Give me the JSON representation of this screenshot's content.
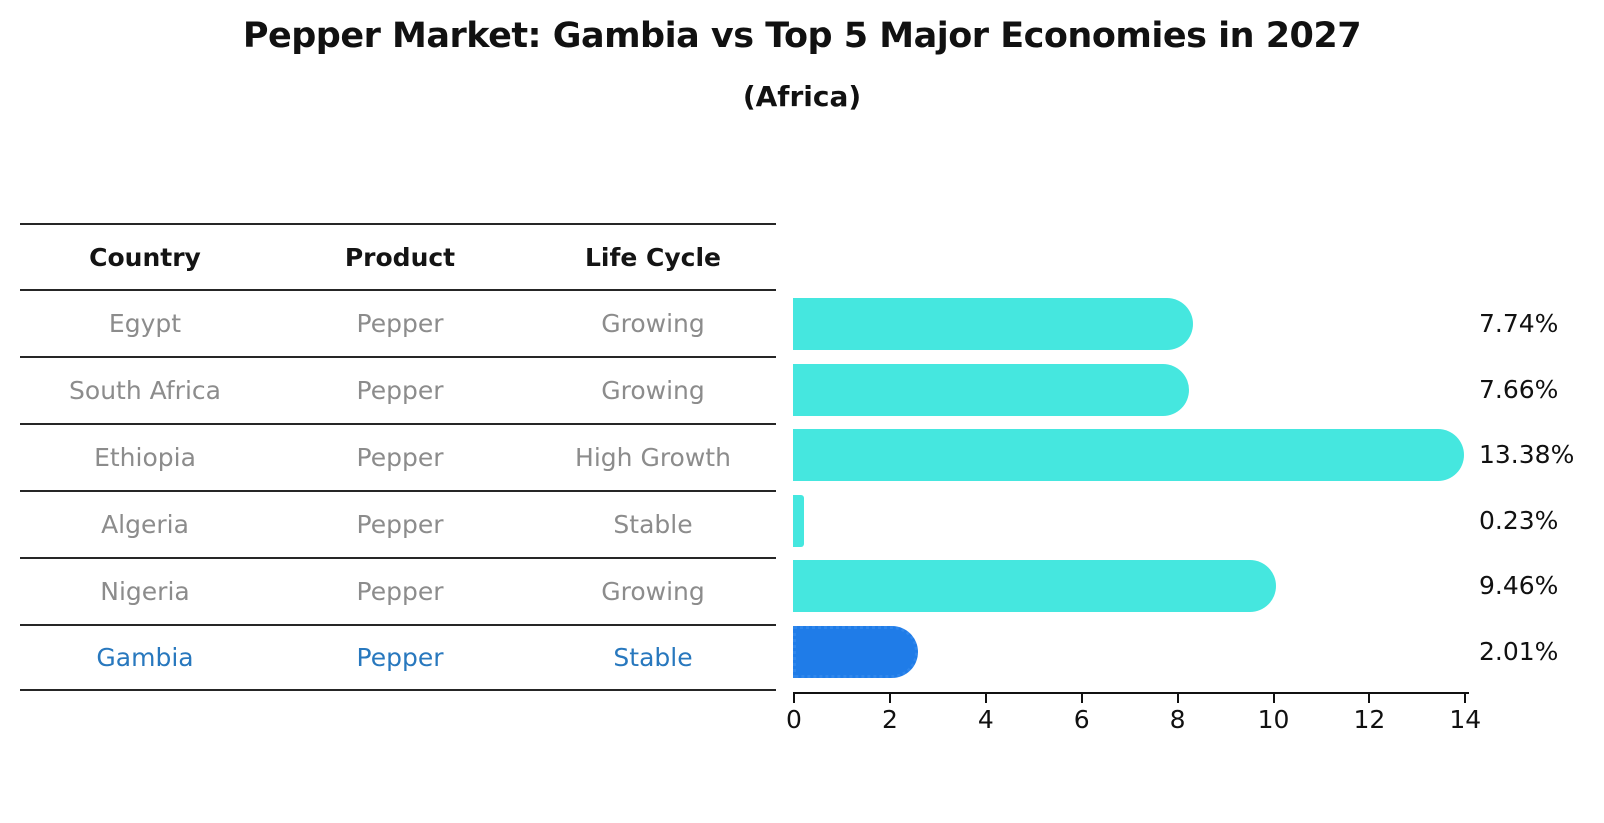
{
  "header": {
    "title": "Pepper Market: Gambia vs Top 5 Major Economies in 2027",
    "subtitle": "(Africa)"
  },
  "table": {
    "headers": [
      "Country",
      "Product",
      "Life Cycle"
    ],
    "rows": [
      {
        "country": "Egypt",
        "product": "Pepper",
        "life_cycle": "Growing",
        "highlight": false
      },
      {
        "country": "South Africa",
        "product": "Pepper",
        "life_cycle": "Growing",
        "highlight": false
      },
      {
        "country": "Ethiopia",
        "product": "Pepper",
        "life_cycle": "High Growth",
        "highlight": false
      },
      {
        "country": "Algeria",
        "product": "Pepper",
        "life_cycle": "Stable",
        "highlight": false
      },
      {
        "country": "Nigeria",
        "product": "Pepper",
        "life_cycle": "Growing",
        "highlight": false
      },
      {
        "country": "Gambia",
        "product": "Pepper",
        "life_cycle": "Stable",
        "highlight": true
      }
    ]
  },
  "chart_data": {
    "type": "bar",
    "orientation": "horizontal",
    "title": "Pepper Market: Gambia vs Top 5 Major Economies in 2027",
    "subtitle": "(Africa)",
    "categories": [
      "Egypt",
      "South Africa",
      "Ethiopia",
      "Algeria",
      "Nigeria",
      "Gambia"
    ],
    "values": [
      7.74,
      7.66,
      13.38,
      0.23,
      9.46,
      2.01
    ],
    "value_labels": [
      "7.74%",
      "7.66%",
      "13.38%",
      "0.23%",
      "9.46%",
      "2.01%"
    ],
    "xlim": [
      0,
      14
    ],
    "x_ticks": [
      0,
      2,
      4,
      6,
      8,
      10,
      12,
      14
    ],
    "grid": false,
    "legend_position": "none",
    "bar_color": "#45e7df",
    "highlight_bar_color": "#1f7ce8",
    "highlight_index": 5
  },
  "colors": {
    "title_text": "#111111",
    "table_header_text": "#141414",
    "table_row_text": "#8c8c8c",
    "highlight_text": "#2878be",
    "axis": "#111111",
    "table_line": "#262626"
  }
}
